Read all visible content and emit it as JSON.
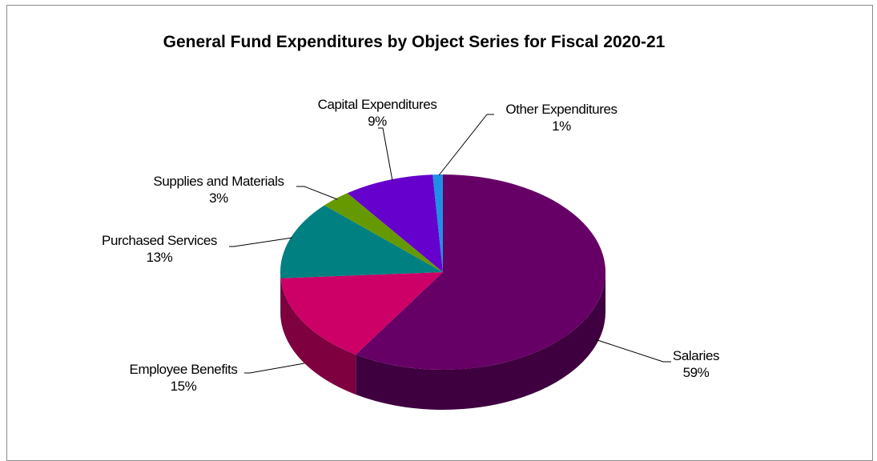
{
  "chart_data": {
    "type": "pie",
    "title": "General Fund Expenditures by Object Series for Fiscal 2020-21",
    "slices": [
      {
        "name": "Salaries",
        "label": "59%",
        "value": 59,
        "color": "#660066"
      },
      {
        "name": "Employee Benefits",
        "label": "15%",
        "value": 15,
        "color": "#cc0066"
      },
      {
        "name": "Purchased Services",
        "label": "13%",
        "value": 13,
        "color": "#008080"
      },
      {
        "name": "Supplies and Materials",
        "label": "3%",
        "value": 3,
        "color": "#669900"
      },
      {
        "name": "Capital Expenditures",
        "label": "9%",
        "value": 9,
        "color": "#6600cc"
      },
      {
        "name": "Other Expenditures",
        "label": "1%",
        "value": 1,
        "color": "#1f8fe6"
      }
    ],
    "legend": "none",
    "style": "3d-exploded-none"
  }
}
